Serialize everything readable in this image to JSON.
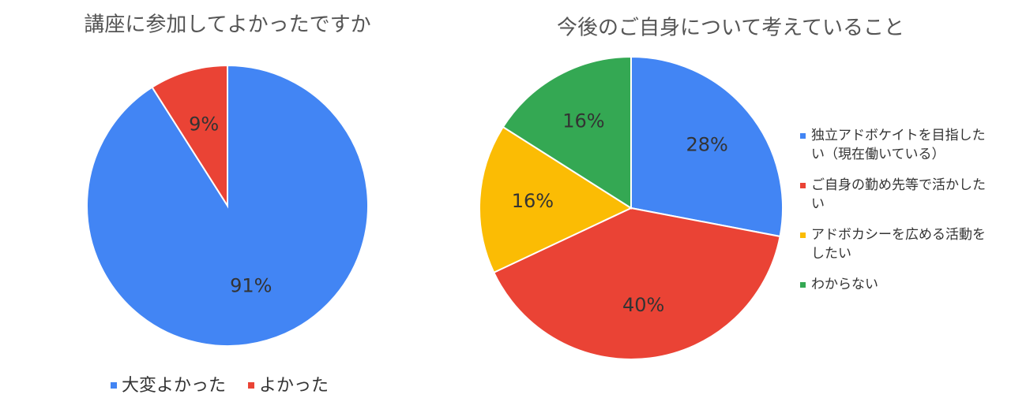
{
  "chart_data": [
    {
      "type": "pie",
      "title": "講座に参加してよかったですか",
      "categories": [
        "大変よかった",
        "よかった"
      ],
      "values": [
        91,
        9
      ],
      "value_labels": [
        "91%",
        "9%"
      ],
      "colors": [
        "#4285f4",
        "#ea4335"
      ],
      "legend": "bottom"
    },
    {
      "type": "pie",
      "title": "今後のご自身について考えていること",
      "categories": [
        "独立アドボケイトを目指したい（現在働いている）",
        "ご自身の勤め先等で活かしたい",
        "アドボカシーを広める活動をしたい",
        "わからない"
      ],
      "values": [
        28,
        40,
        16,
        16
      ],
      "value_labels": [
        "28%",
        "40%",
        "16%",
        "16%"
      ],
      "colors": [
        "#4285f4",
        "#ea4335",
        "#fbbc04",
        "#34a853"
      ],
      "legend": "right"
    }
  ]
}
